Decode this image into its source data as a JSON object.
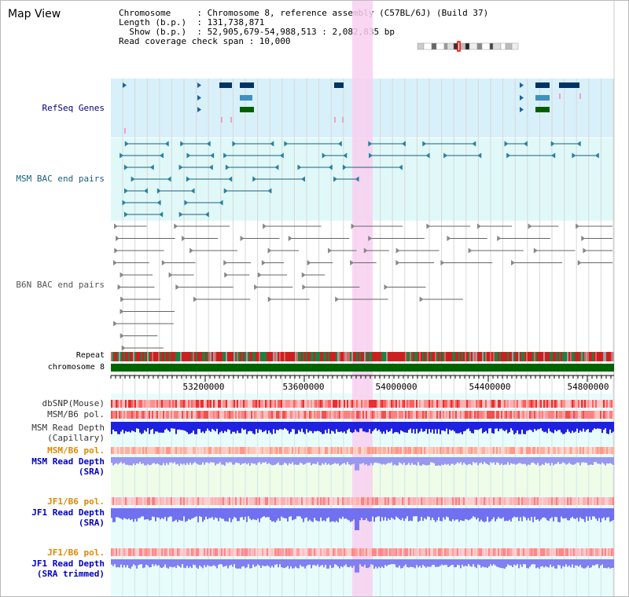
{
  "header": {
    "title": "Map View",
    "info_lines": [
      "Chromosome     : Chromosome 8, reference assembly (C57BL/6J) (Build 37)",
      "Length (b.p.)  : 131,738,871",
      "  Show (b.p.)  : 52,905,679-54,988,513 : 2,082,835 bp",
      "Read coverage check span : 10,000"
    ]
  },
  "tracks": {
    "refseq": {
      "label": "RefSeq Genes",
      "color": "#000080"
    },
    "msm_bac": {
      "label": "MSM BAC end pairs",
      "color": "#1a5f7a"
    },
    "b6n_bac": {
      "label": "B6N BAC end pairs",
      "color": "#555555"
    },
    "repeat": {
      "label": "Repeat"
    },
    "chromosome": {
      "label": "chromosome 8"
    },
    "dbsnp": {
      "label": "dbSNP(Mouse)"
    },
    "msm_b6_pol": {
      "label": "MSM/B6 pol."
    },
    "msm_depth_cap": {
      "label1": "MSM Read Depth",
      "label2": "(Capillary)"
    },
    "msm_b6_pol2": {
      "label": "MSM/B6 pol.",
      "color": "#e08800"
    },
    "msm_depth_sra": {
      "label1": "MSM Read Depth",
      "label2": "(SRA)",
      "color": "#0000c0"
    },
    "jf1_b6_pol": {
      "label": "JF1/B6 pol.",
      "color": "#e08800"
    },
    "jf1_depth_sra": {
      "label1": "JF1 Read Depth",
      "label2": "(SRA)",
      "color": "#0000c0"
    },
    "jf1_b6_pol2": {
      "label": "JF1/B6 pol.",
      "color": "#e08800"
    },
    "jf1_depth_trim": {
      "label1": "JF1 Read Depth",
      "label2": "(SRA trimmed)",
      "color": "#0000c0"
    }
  },
  "axis": {
    "ticks": [
      "53200000",
      "53600000",
      "54000000",
      "54400000",
      "54800000"
    ]
  },
  "colors": {
    "highlight": "#f8d0f0",
    "refseq_bg": "#d8f0fa",
    "msm_bg": "#e0f8f8",
    "b6n_bg": "#ffffff",
    "lower_bg": "#e8fcfc"
  }
}
